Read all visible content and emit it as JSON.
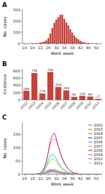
{
  "chart_data": [
    {
      "type": "bar",
      "title": "A",
      "xlabel": "Work week",
      "ylabel": "No. cases",
      "color": "#c9403a",
      "x": [
        14,
        15,
        16,
        17,
        18,
        19,
        20,
        21,
        22,
        23,
        24,
        25,
        26,
        27,
        28,
        29,
        30,
        31,
        32,
        33,
        34,
        35,
        36,
        37,
        38,
        39,
        40,
        41,
        42,
        43,
        44,
        45,
        46,
        47,
        48,
        49,
        50,
        51,
        52
      ],
      "values": [
        0,
        0,
        0,
        1,
        1,
        2,
        3,
        5,
        8,
        12,
        18,
        28,
        50,
        90,
        140,
        185,
        215,
        235,
        255,
        258,
        220,
        190,
        162,
        128,
        98,
        72,
        52,
        38,
        25,
        16,
        10,
        7,
        4,
        2,
        2,
        1,
        1,
        0,
        0
      ],
      "xlim": [
        13,
        53
      ],
      "xticks": [
        14,
        18,
        22,
        26,
        30,
        34,
        38,
        42,
        46,
        50
      ],
      "ylim": [
        0,
        300
      ],
      "yticks": [
        0,
        100,
        200,
        300
      ]
    },
    {
      "type": "bar",
      "title": "B",
      "ylabel": "Incidence",
      "color": "#c9403a",
      "categories": [
        "2002",
        "2003",
        "2004",
        "2005",
        "2006",
        "2007",
        "2008",
        "2009",
        "2010",
        "2011"
      ],
      "values": [
        249,
        738,
        176,
        764,
        354,
        259,
        81,
        110,
        89,
        27
      ],
      "ylim": [
        0,
        850
      ],
      "yticks": [
        0,
        200,
        400,
        600,
        800
      ],
      "data_labels": true
    },
    {
      "type": "line",
      "title": "C",
      "xlabel": "Work week",
      "ylabel": "No. cases",
      "legend": "upper right",
      "x": [
        14,
        15,
        16,
        17,
        18,
        19,
        20,
        21,
        22,
        23,
        24,
        25,
        26,
        27,
        28,
        29,
        30,
        31,
        32,
        33,
        34,
        35,
        36,
        37,
        38,
        39,
        40,
        41,
        42,
        43,
        44,
        45,
        46,
        47,
        48,
        49,
        50,
        51,
        52
      ],
      "series": [
        {
          "name": "2002",
          "color": "#5b9bd5",
          "values": [
            0,
            0,
            0,
            0,
            0,
            1,
            2,
            3,
            5,
            8,
            10,
            13,
            16,
            18,
            17,
            15,
            12,
            9,
            7,
            5,
            4,
            3,
            2,
            1,
            1,
            1,
            0,
            0,
            0,
            0,
            0,
            0,
            0,
            0,
            0,
            0,
            0,
            0,
            0
          ]
        },
        {
          "name": "2003",
          "color": "#ed7d31",
          "values": [
            0,
            0,
            0,
            0,
            0,
            0,
            0,
            2,
            5,
            12,
            25,
            50,
            80,
            115,
            128,
            135,
            125,
            105,
            82,
            62,
            46,
            32,
            20,
            13,
            8,
            5,
            3,
            2,
            1,
            1,
            0,
            0,
            0,
            0,
            0,
            0,
            0,
            0,
            0
          ]
        },
        {
          "name": "2004",
          "color": "#70ad47",
          "values": [
            0,
            0,
            0,
            0,
            0,
            0,
            0,
            1,
            2,
            4,
            6,
            9,
            13,
            15,
            17,
            18,
            16,
            13,
            11,
            9,
            7,
            5,
            4,
            3,
            2,
            1,
            1,
            0,
            0,
            0,
            0,
            0,
            0,
            0,
            0,
            0,
            0,
            0,
            0
          ]
        },
        {
          "name": "2005",
          "color": "#9c27b0",
          "values": [
            0,
            0,
            0,
            0,
            0,
            0,
            1,
            2,
            5,
            12,
            25,
            48,
            85,
            125,
            145,
            155,
            135,
            105,
            78,
            58,
            42,
            30,
            20,
            13,
            8,
            5,
            3,
            2,
            1,
            1,
            0,
            0,
            0,
            0,
            0,
            0,
            0,
            0,
            0
          ]
        },
        {
          "name": "2006",
          "color": "#17becf",
          "values": [
            0,
            0,
            0,
            0,
            0,
            0,
            0,
            1,
            4,
            10,
            18,
            32,
            55,
            70,
            75,
            70,
            58,
            45,
            32,
            24,
            17,
            12,
            8,
            5,
            3,
            2,
            1,
            1,
            0,
            0,
            0,
            0,
            0,
            0,
            0,
            0,
            0,
            0,
            0
          ]
        },
        {
          "name": "2007",
          "color": "#bcbd22",
          "values": [
            0,
            0,
            0,
            0,
            0,
            0,
            0,
            1,
            3,
            7,
            14,
            25,
            40,
            55,
            58,
            55,
            47,
            37,
            27,
            19,
            13,
            9,
            6,
            3,
            2,
            1,
            1,
            0,
            0,
            0,
            0,
            0,
            0,
            0,
            0,
            0,
            0,
            0,
            0
          ]
        },
        {
          "name": "2008",
          "color": "#8c564b",
          "values": [
            0,
            0,
            0,
            0,
            0,
            0,
            0,
            0,
            1,
            2,
            3,
            5,
            7,
            9,
            10,
            9,
            8,
            6,
            5,
            3,
            2,
            2,
            1,
            1,
            0,
            0,
            0,
            0,
            0,
            0,
            0,
            0,
            0,
            0,
            0,
            0,
            0,
            0,
            0
          ]
        },
        {
          "name": "2009",
          "color": "#7f7f7f",
          "values": [
            0,
            0,
            0,
            0,
            0,
            0,
            0,
            0,
            1,
            2,
            4,
            7,
            11,
            14,
            15,
            13,
            11,
            9,
            7,
            5,
            4,
            3,
            2,
            1,
            1,
            0,
            0,
            0,
            0,
            0,
            0,
            0,
            0,
            0,
            0,
            0,
            0,
            0,
            0
          ]
        },
        {
          "name": "2010",
          "color": "#e377c2",
          "values": [
            0,
            0,
            0,
            0,
            0,
            0,
            0,
            0,
            1,
            2,
            3,
            5,
            9,
            11,
            12,
            11,
            9,
            7,
            5,
            4,
            3,
            2,
            1,
            1,
            0,
            0,
            0,
            0,
            0,
            0,
            0,
            0,
            0,
            0,
            0,
            0,
            0,
            0,
            0
          ]
        },
        {
          "name": "2011",
          "color": "#aec7e8",
          "values": [
            0,
            0,
            0,
            0,
            0,
            0,
            0,
            0,
            0,
            1,
            2,
            3,
            4,
            4,
            4,
            3,
            3,
            2,
            1,
            1,
            0,
            0,
            0,
            0,
            0,
            0,
            0,
            0,
            0,
            0,
            0,
            0,
            0,
            0,
            0,
            0,
            0,
            0,
            0
          ]
        }
      ],
      "xlim": [
        13,
        53
      ],
      "xticks": [
        14,
        18,
        22,
        26,
        30,
        34,
        38,
        42,
        46,
        50
      ],
      "ylim": [
        0,
        195
      ],
      "yticks": [
        0,
        50,
        100,
        150
      ]
    }
  ]
}
